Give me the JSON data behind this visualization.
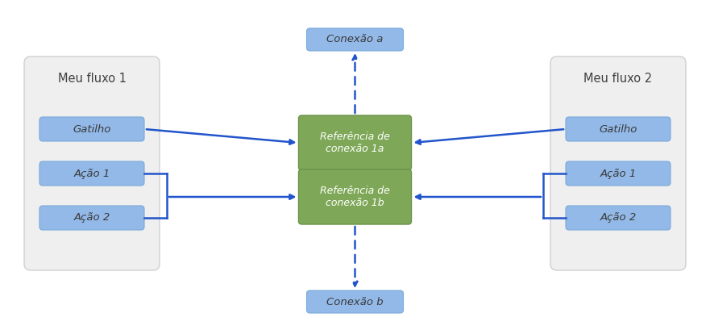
{
  "background_color": "#ffffff",
  "flow_box_color": "#efefef",
  "flow_box_border": "#d0d0d0",
  "blue_box_color": "#93b9e8",
  "blue_box_border": "#7aaad8",
  "green_box_color": "#7ea858",
  "green_box_border": "#6a9248",
  "arrow_color": "#2255cc",
  "text_color": "#404040",
  "title_fontsize": 10.5,
  "item_fontsize": 9.5,
  "ref_fontsize": 9.0,
  "conn_fontsize": 9.5,
  "flow1_title": "Meu fluxo 1",
  "flow2_title": "Meu fluxo 2",
  "flow1_items": [
    "Gatilho",
    "Ação 1",
    "Ação 2"
  ],
  "flow2_items": [
    "Gatilho",
    "Ação 1",
    "Ação 2"
  ],
  "ref1_label": "Referência de\nconexão 1a",
  "ref2_label": "Referência de\nconexão 1b",
  "conn_a_label": "Conexão a",
  "conn_b_label": "Conexão b",
  "fig_w": 8.81,
  "fig_h": 4.09,
  "dpi": 100
}
